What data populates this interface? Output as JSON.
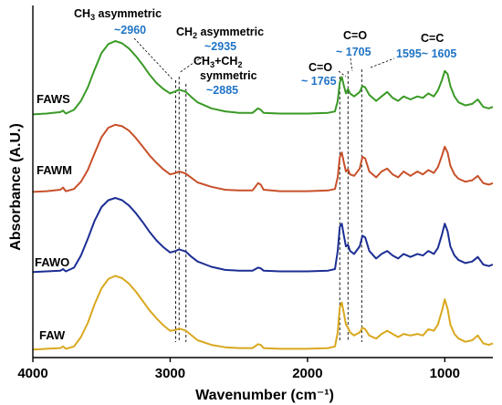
{
  "chart_data": {
    "type": "line",
    "title": "",
    "xlabel": "Wavenumber (cm⁻¹)",
    "ylabel": "Absorbance (A.U.)",
    "xlim": [
      4000,
      650
    ],
    "x_reversed": true,
    "x_ticks": [
      4000,
      3000,
      2000,
      1000
    ],
    "y_ticks": [],
    "grid": false,
    "legend": "none",
    "series": [
      {
        "name": "FAWS",
        "color": "#3a9a26",
        "points": [
          [
            4000,
            0.02
          ],
          [
            3900,
            0.03
          ],
          [
            3800,
            0.05
          ],
          [
            3780,
            0.07
          ],
          [
            3760,
            0.03
          ],
          [
            3700,
            0.08
          ],
          [
            3650,
            0.2
          ],
          [
            3600,
            0.38
          ],
          [
            3550,
            0.62
          ],
          [
            3500,
            0.84
          ],
          [
            3450,
            0.96
          ],
          [
            3400,
            1.0
          ],
          [
            3350,
            0.97
          ],
          [
            3300,
            0.9
          ],
          [
            3250,
            0.8
          ],
          [
            3200,
            0.68
          ],
          [
            3150,
            0.55
          ],
          [
            3100,
            0.44
          ],
          [
            3050,
            0.36
          ],
          [
            3000,
            0.3
          ],
          [
            2960,
            0.33
          ],
          [
            2935,
            0.35
          ],
          [
            2900,
            0.33
          ],
          [
            2885,
            0.32
          ],
          [
            2850,
            0.26
          ],
          [
            2800,
            0.18
          ],
          [
            2700,
            0.1
          ],
          [
            2600,
            0.06
          ],
          [
            2500,
            0.04
          ],
          [
            2400,
            0.04
          ],
          [
            2360,
            0.1
          ],
          [
            2340,
            0.08
          ],
          [
            2320,
            0.04
          ],
          [
            2200,
            0.03
          ],
          [
            2000,
            0.03
          ],
          [
            1850,
            0.04
          ],
          [
            1800,
            0.06
          ],
          [
            1780,
            0.2
          ],
          [
            1765,
            0.45
          ],
          [
            1750,
            0.52
          ],
          [
            1735,
            0.4
          ],
          [
            1720,
            0.3
          ],
          [
            1705,
            0.36
          ],
          [
            1690,
            0.3
          ],
          [
            1660,
            0.26
          ],
          [
            1620,
            0.32
          ],
          [
            1600,
            0.4
          ],
          [
            1580,
            0.38
          ],
          [
            1550,
            0.28
          ],
          [
            1500,
            0.2
          ],
          [
            1460,
            0.26
          ],
          [
            1420,
            0.32
          ],
          [
            1380,
            0.24
          ],
          [
            1340,
            0.2
          ],
          [
            1300,
            0.26
          ],
          [
            1250,
            0.22
          ],
          [
            1200,
            0.26
          ],
          [
            1160,
            0.24
          ],
          [
            1120,
            0.3
          ],
          [
            1080,
            0.26
          ],
          [
            1050,
            0.34
          ],
          [
            1020,
            0.48
          ],
          [
            1000,
            0.6
          ],
          [
            980,
            0.56
          ],
          [
            960,
            0.4
          ],
          [
            930,
            0.26
          ],
          [
            900,
            0.18
          ],
          [
            850,
            0.14
          ],
          [
            800,
            0.16
          ],
          [
            760,
            0.22
          ],
          [
            720,
            0.12
          ],
          [
            680,
            0.1
          ],
          [
            650,
            0.12
          ]
        ]
      },
      {
        "name": "FAWM",
        "color": "#c8502a",
        "points": [
          [
            4000,
            0.02
          ],
          [
            3900,
            0.03
          ],
          [
            3800,
            0.05
          ],
          [
            3780,
            0.08
          ],
          [
            3760,
            0.03
          ],
          [
            3700,
            0.06
          ],
          [
            3650,
            0.16
          ],
          [
            3600,
            0.32
          ],
          [
            3550,
            0.55
          ],
          [
            3500,
            0.77
          ],
          [
            3450,
            0.9
          ],
          [
            3400,
            0.94
          ],
          [
            3350,
            0.92
          ],
          [
            3300,
            0.86
          ],
          [
            3250,
            0.76
          ],
          [
            3200,
            0.64
          ],
          [
            3150,
            0.52
          ],
          [
            3100,
            0.42
          ],
          [
            3050,
            0.33
          ],
          [
            3000,
            0.26
          ],
          [
            2960,
            0.28
          ],
          [
            2935,
            0.3
          ],
          [
            2900,
            0.28
          ],
          [
            2885,
            0.27
          ],
          [
            2850,
            0.22
          ],
          [
            2800,
            0.15
          ],
          [
            2700,
            0.09
          ],
          [
            2600,
            0.05
          ],
          [
            2500,
            0.04
          ],
          [
            2400,
            0.04
          ],
          [
            2360,
            0.14
          ],
          [
            2340,
            0.12
          ],
          [
            2320,
            0.05
          ],
          [
            2200,
            0.03
          ],
          [
            2000,
            0.03
          ],
          [
            1850,
            0.04
          ],
          [
            1800,
            0.06
          ],
          [
            1780,
            0.22
          ],
          [
            1765,
            0.5
          ],
          [
            1750,
            0.56
          ],
          [
            1735,
            0.42
          ],
          [
            1720,
            0.3
          ],
          [
            1705,
            0.33
          ],
          [
            1690,
            0.26
          ],
          [
            1660,
            0.24
          ],
          [
            1620,
            0.34
          ],
          [
            1600,
            0.5
          ],
          [
            1580,
            0.48
          ],
          [
            1550,
            0.3
          ],
          [
            1500,
            0.22
          ],
          [
            1460,
            0.3
          ],
          [
            1420,
            0.34
          ],
          [
            1380,
            0.26
          ],
          [
            1340,
            0.22
          ],
          [
            1300,
            0.3
          ],
          [
            1250,
            0.24
          ],
          [
            1200,
            0.3
          ],
          [
            1160,
            0.26
          ],
          [
            1120,
            0.32
          ],
          [
            1080,
            0.28
          ],
          [
            1050,
            0.36
          ],
          [
            1020,
            0.52
          ],
          [
            1000,
            0.64
          ],
          [
            980,
            0.56
          ],
          [
            960,
            0.38
          ],
          [
            930,
            0.26
          ],
          [
            900,
            0.2
          ],
          [
            850,
            0.16
          ],
          [
            800,
            0.18
          ],
          [
            760,
            0.24
          ],
          [
            720,
            0.14
          ],
          [
            680,
            0.12
          ],
          [
            650,
            0.14
          ]
        ]
      },
      {
        "name": "FAWO",
        "color": "#1c2e94",
        "points": [
          [
            4000,
            0.02
          ],
          [
            3900,
            0.03
          ],
          [
            3800,
            0.04
          ],
          [
            3780,
            0.06
          ],
          [
            3760,
            0.03
          ],
          [
            3700,
            0.08
          ],
          [
            3650,
            0.24
          ],
          [
            3600,
            0.46
          ],
          [
            3550,
            0.7
          ],
          [
            3500,
            0.88
          ],
          [
            3450,
            0.97
          ],
          [
            3400,
            1.0
          ],
          [
            3350,
            0.97
          ],
          [
            3300,
            0.9
          ],
          [
            3250,
            0.8
          ],
          [
            3200,
            0.68
          ],
          [
            3150,
            0.55
          ],
          [
            3100,
            0.44
          ],
          [
            3050,
            0.35
          ],
          [
            3000,
            0.28
          ],
          [
            2960,
            0.3
          ],
          [
            2935,
            0.32
          ],
          [
            2900,
            0.3
          ],
          [
            2885,
            0.29
          ],
          [
            2850,
            0.23
          ],
          [
            2800,
            0.16
          ],
          [
            2700,
            0.09
          ],
          [
            2600,
            0.05
          ],
          [
            2500,
            0.04
          ],
          [
            2400,
            0.04
          ],
          [
            2360,
            0.08
          ],
          [
            2340,
            0.07
          ],
          [
            2320,
            0.04
          ],
          [
            2200,
            0.03
          ],
          [
            2000,
            0.03
          ],
          [
            1850,
            0.04
          ],
          [
            1800,
            0.06
          ],
          [
            1780,
            0.3
          ],
          [
            1765,
            0.62
          ],
          [
            1750,
            0.66
          ],
          [
            1735,
            0.5
          ],
          [
            1720,
            0.36
          ],
          [
            1705,
            0.38
          ],
          [
            1690,
            0.3
          ],
          [
            1660,
            0.26
          ],
          [
            1620,
            0.36
          ],
          [
            1600,
            0.5
          ],
          [
            1580,
            0.48
          ],
          [
            1550,
            0.3
          ],
          [
            1500,
            0.2
          ],
          [
            1460,
            0.26
          ],
          [
            1420,
            0.3
          ],
          [
            1380,
            0.24
          ],
          [
            1340,
            0.2
          ],
          [
            1300,
            0.26
          ],
          [
            1250,
            0.22
          ],
          [
            1200,
            0.26
          ],
          [
            1160,
            0.24
          ],
          [
            1120,
            0.3
          ],
          [
            1080,
            0.26
          ],
          [
            1050,
            0.34
          ],
          [
            1020,
            0.52
          ],
          [
            1000,
            0.66
          ],
          [
            980,
            0.56
          ],
          [
            960,
            0.36
          ],
          [
            930,
            0.24
          ],
          [
            900,
            0.18
          ],
          [
            850,
            0.14
          ],
          [
            800,
            0.16
          ],
          [
            760,
            0.22
          ],
          [
            720,
            0.12
          ],
          [
            680,
            0.1
          ],
          [
            650,
            0.12
          ]
        ]
      },
      {
        "name": "FAW",
        "color": "#d9a81e",
        "points": [
          [
            4000,
            0.02
          ],
          [
            3900,
            0.03
          ],
          [
            3800,
            0.04
          ],
          [
            3780,
            0.06
          ],
          [
            3760,
            0.03
          ],
          [
            3700,
            0.06
          ],
          [
            3650,
            0.18
          ],
          [
            3600,
            0.36
          ],
          [
            3550,
            0.6
          ],
          [
            3500,
            0.8
          ],
          [
            3450,
            0.92
          ],
          [
            3400,
            0.96
          ],
          [
            3350,
            0.93
          ],
          [
            3300,
            0.86
          ],
          [
            3250,
            0.76
          ],
          [
            3200,
            0.64
          ],
          [
            3150,
            0.52
          ],
          [
            3100,
            0.42
          ],
          [
            3050,
            0.33
          ],
          [
            3000,
            0.26
          ],
          [
            2960,
            0.27
          ],
          [
            2935,
            0.29
          ],
          [
            2900,
            0.27
          ],
          [
            2885,
            0.26
          ],
          [
            2850,
            0.21
          ],
          [
            2800,
            0.14
          ],
          [
            2700,
            0.08
          ],
          [
            2600,
            0.05
          ],
          [
            2500,
            0.04
          ],
          [
            2400,
            0.04
          ],
          [
            2360,
            0.09
          ],
          [
            2340,
            0.08
          ],
          [
            2320,
            0.04
          ],
          [
            2200,
            0.03
          ],
          [
            2000,
            0.03
          ],
          [
            1850,
            0.04
          ],
          [
            1800,
            0.06
          ],
          [
            1780,
            0.24
          ],
          [
            1765,
            0.56
          ],
          [
            1750,
            0.62
          ],
          [
            1735,
            0.48
          ],
          [
            1720,
            0.34
          ],
          [
            1705,
            0.3
          ],
          [
            1690,
            0.24
          ],
          [
            1660,
            0.2
          ],
          [
            1620,
            0.24
          ],
          [
            1600,
            0.3
          ],
          [
            1580,
            0.28
          ],
          [
            1550,
            0.2
          ],
          [
            1500,
            0.16
          ],
          [
            1460,
            0.22
          ],
          [
            1420,
            0.26
          ],
          [
            1380,
            0.22
          ],
          [
            1340,
            0.18
          ],
          [
            1300,
            0.22
          ],
          [
            1250,
            0.2
          ],
          [
            1200,
            0.22
          ],
          [
            1160,
            0.2
          ],
          [
            1120,
            0.28
          ],
          [
            1080,
            0.26
          ],
          [
            1050,
            0.34
          ],
          [
            1020,
            0.52
          ],
          [
            1000,
            0.66
          ],
          [
            980,
            0.54
          ],
          [
            960,
            0.34
          ],
          [
            930,
            0.22
          ],
          [
            900,
            0.16
          ],
          [
            850,
            0.12
          ],
          [
            800,
            0.14
          ],
          [
            760,
            0.2
          ],
          [
            720,
            0.1
          ],
          [
            680,
            0.08
          ],
          [
            650,
            0.1
          ]
        ]
      }
    ],
    "reference_lines": [
      2960,
      2935,
      2885,
      1765,
      1705,
      1605
    ],
    "annotations": [
      {
        "label": "CH₃ asymmetric",
        "value": "~2960"
      },
      {
        "label": "CH₂ asymmetric",
        "value": "~2935"
      },
      {
        "label": "CH₃+CH₂",
        "label2": "symmetric",
        "value": "~2885"
      },
      {
        "label": "C=O",
        "value": "~ 1765"
      },
      {
        "label": "C=O",
        "value": "~ 1705"
      },
      {
        "label": "C=C",
        "value": "1595~ 1605"
      }
    ]
  }
}
